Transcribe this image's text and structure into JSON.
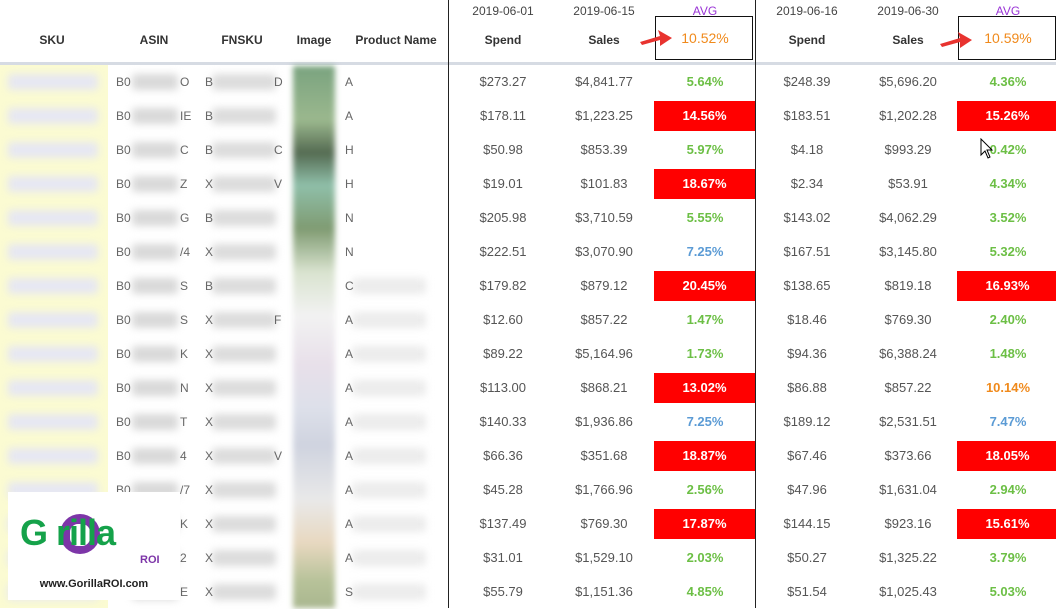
{
  "columns": {
    "sku": "SKU",
    "asin": "ASIN",
    "fnsku": "FNSKU",
    "image": "Image",
    "product_name": "Product Name"
  },
  "period1": {
    "date_start": "2019-06-01",
    "date_end": "2019-06-15",
    "spend_label": "Spend",
    "sales_label": "Sales",
    "avg_label": "AVG",
    "avg_value": "10.52%"
  },
  "period2": {
    "date_start": "2019-06-16",
    "date_end": "2019-06-30",
    "spend_label": "Spend",
    "sales_label": "Sales",
    "avg_label": "AVG",
    "avg_value": "10.59%"
  },
  "rows": [
    {
      "asin_partial": "B0",
      "asin_tail": "O",
      "fnsku_partial": "B",
      "fnsku_tail": "D",
      "name_partial": "A",
      "spend1": "$273.27",
      "sales1": "$4,841.77",
      "pct1": "5.64%",
      "status1": "green",
      "spend2": "$248.39",
      "sales2": "$5,696.20",
      "pct2": "4.36%",
      "status2": "green"
    },
    {
      "asin_partial": "B0",
      "asin_tail": "IE",
      "fnsku_partial": "B",
      "fnsku_tail": "",
      "name_partial": "A",
      "spend1": "$178.11",
      "sales1": "$1,223.25",
      "pct1": "14.56%",
      "status1": "red",
      "spend2": "$183.51",
      "sales2": "$1,202.28",
      "pct2": "15.26%",
      "status2": "red"
    },
    {
      "asin_partial": "B0",
      "asin_tail": "C",
      "fnsku_partial": "B",
      "fnsku_tail": "C",
      "name_partial": "H",
      "spend1": "$50.98",
      "sales1": "$853.39",
      "pct1": "5.97%",
      "status1": "green",
      "spend2": "$4.18",
      "sales2": "$993.29",
      "pct2": "0.42%",
      "status2": "green"
    },
    {
      "asin_partial": "B0",
      "asin_tail": "Z",
      "fnsku_partial": "X",
      "fnsku_tail": "V",
      "name_partial": "H",
      "spend1": "$19.01",
      "sales1": "$101.83",
      "pct1": "18.67%",
      "status1": "red",
      "spend2": "$2.34",
      "sales2": "$53.91",
      "pct2": "4.34%",
      "status2": "green"
    },
    {
      "asin_partial": "B0",
      "asin_tail": "G",
      "fnsku_partial": "B",
      "fnsku_tail": "",
      "name_partial": "N",
      "spend1": "$205.98",
      "sales1": "$3,710.59",
      "pct1": "5.55%",
      "status1": "green",
      "spend2": "$143.02",
      "sales2": "$4,062.29",
      "pct2": "3.52%",
      "status2": "green"
    },
    {
      "asin_partial": "B0",
      "asin_tail": "/4",
      "fnsku_partial": "X",
      "fnsku_tail": "",
      "name_partial": "N",
      "spend1": "$222.51",
      "sales1": "$3,070.90",
      "pct1": "7.25%",
      "status1": "blue",
      "spend2": "$167.51",
      "sales2": "$3,145.80",
      "pct2": "5.32%",
      "status2": "green"
    },
    {
      "asin_partial": "B0",
      "asin_tail": "S",
      "fnsku_partial": "B",
      "fnsku_tail": "",
      "name_partial": "C",
      "spend1": "$179.82",
      "sales1": "$879.12",
      "pct1": "20.45%",
      "status1": "red",
      "spend2": "$138.65",
      "sales2": "$819.18",
      "pct2": "16.93%",
      "status2": "red"
    },
    {
      "asin_partial": "B0",
      "asin_tail": "S",
      "fnsku_partial": "X",
      "fnsku_tail": "F",
      "name_partial": "A",
      "spend1": "$12.60",
      "sales1": "$857.22",
      "pct1": "1.47%",
      "status1": "green",
      "spend2": "$18.46",
      "sales2": "$769.30",
      "pct2": "2.40%",
      "status2": "green"
    },
    {
      "asin_partial": "B0",
      "asin_tail": "K",
      "fnsku_partial": "X",
      "fnsku_tail": "",
      "name_partial": "A",
      "spend1": "$89.22",
      "sales1": "$5,164.96",
      "pct1": "1.73%",
      "status1": "green",
      "spend2": "$94.36",
      "sales2": "$6,388.24",
      "pct2": "1.48%",
      "status2": "green"
    },
    {
      "asin_partial": "B0",
      "asin_tail": "N",
      "fnsku_partial": "X",
      "fnsku_tail": "",
      "name_partial": "A",
      "spend1": "$113.00",
      "sales1": "$868.21",
      "pct1": "13.02%",
      "status1": "red",
      "spend2": "$86.88",
      "sales2": "$857.22",
      "pct2": "10.14%",
      "status2": "orange"
    },
    {
      "asin_partial": "B0",
      "asin_tail": "T",
      "fnsku_partial": "X",
      "fnsku_tail": "",
      "name_partial": "A",
      "spend1": "$140.33",
      "sales1": "$1,936.86",
      "pct1": "7.25%",
      "status1": "blue",
      "spend2": "$189.12",
      "sales2": "$2,531.51",
      "pct2": "7.47%",
      "status2": "blue"
    },
    {
      "asin_partial": "B0",
      "asin_tail": "4",
      "fnsku_partial": "X",
      "fnsku_tail": "V",
      "name_partial": "A",
      "spend1": "$66.36",
      "sales1": "$351.68",
      "pct1": "18.87%",
      "status1": "red",
      "spend2": "$67.46",
      "sales2": "$373.66",
      "pct2": "18.05%",
      "status2": "red"
    },
    {
      "asin_partial": "B0",
      "asin_tail": "/7",
      "fnsku_partial": "X",
      "fnsku_tail": "",
      "name_partial": "A",
      "spend1": "$45.28",
      "sales1": "$1,766.96",
      "pct1": "2.56%",
      "status1": "green",
      "spend2": "$47.96",
      "sales2": "$1,631.04",
      "pct2": "2.94%",
      "status2": "green"
    },
    {
      "asin_partial": "",
      "asin_tail": "K",
      "fnsku_partial": "X",
      "fnsku_tail": "",
      "name_partial": "A",
      "spend1": "$137.49",
      "sales1": "$769.30",
      "pct1": "17.87%",
      "status1": "red",
      "spend2": "$144.15",
      "sales2": "$923.16",
      "pct2": "15.61%",
      "status2": "red"
    },
    {
      "asin_partial": "",
      "asin_tail": "2",
      "fnsku_partial": "X",
      "fnsku_tail": "",
      "name_partial": "A",
      "spend1": "$31.01",
      "sales1": "$1,529.10",
      "pct1": "2.03%",
      "status1": "green",
      "spend2": "$50.27",
      "sales2": "$1,325.22",
      "pct2": "3.79%",
      "status2": "green"
    },
    {
      "asin_partial": "",
      "asin_tail": "E",
      "fnsku_partial": "X",
      "fnsku_tail": "",
      "name_partial": "S",
      "spend1": "$55.79",
      "sales1": "$1,151.36",
      "pct1": "4.85%",
      "status1": "green",
      "spend2": "$51.54",
      "sales2": "$1,025.43",
      "pct2": "5.03%",
      "status2": "green"
    }
  ],
  "logo": {
    "brand": "G  rilla",
    "suffix": "ROI",
    "url": "www.GorillaROI.com"
  },
  "colors": {
    "red_highlight": "#ff0000",
    "green_text": "#6cbf45",
    "blue_text": "#5b9bd5",
    "orange_text": "#f08a1c",
    "avg_label": "#9a35d6",
    "sku_background": "#fbfbd2"
  },
  "icons": {
    "pointer": "mouse-cursor-icon",
    "arrow": "red-arrow-icon"
  }
}
